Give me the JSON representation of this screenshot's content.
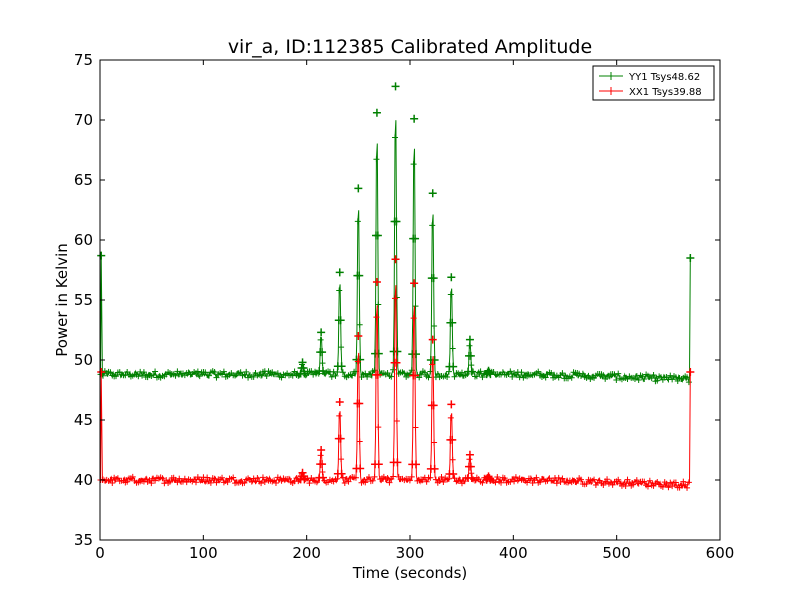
{
  "chart_data": {
    "type": "line",
    "title": "vir_a, ID:112385 Calibrated Amplitude",
    "xlabel": "Time (seconds)",
    "ylabel": "Power in Kelvin",
    "xlim": [
      0,
      600
    ],
    "ylim": [
      35,
      75
    ],
    "xticks": [
      "0",
      "100",
      "200",
      "300",
      "400",
      "500",
      "600"
    ],
    "yticks": [
      "35",
      "40",
      "45",
      "50",
      "55",
      "60",
      "65",
      "70",
      "75"
    ],
    "grid": false,
    "legend_position": "top-right",
    "marker": "plus",
    "series": [
      {
        "name": "YY1 Tsys48.62",
        "color": "#008000",
        "baseline": 48.8,
        "start_level": 58.7,
        "end_level": 58.5,
        "peaks": [
          {
            "x": 196,
            "y": 49.8
          },
          {
            "x": 214,
            "y": 52.3
          },
          {
            "x": 232,
            "y": 57.3
          },
          {
            "x": 250,
            "y": 64.3
          },
          {
            "x": 268,
            "y": 70.6
          },
          {
            "x": 286,
            "y": 72.8
          },
          {
            "x": 304,
            "y": 70.1
          },
          {
            "x": 322,
            "y": 63.9
          },
          {
            "x": 340,
            "y": 56.9
          },
          {
            "x": 358,
            "y": 51.7
          },
          {
            "x": 376,
            "y": 49.1
          }
        ]
      },
      {
        "name": "XX1 Tsys39.88",
        "color": "#ff0000",
        "baseline": 40.0,
        "start_level": 49.0,
        "end_level": 49.0,
        "peaks": [
          {
            "x": 196,
            "y": 40.6
          },
          {
            "x": 214,
            "y": 42.5
          },
          {
            "x": 232,
            "y": 46.5
          },
          {
            "x": 250,
            "y": 52.0
          },
          {
            "x": 268,
            "y": 56.5
          },
          {
            "x": 286,
            "y": 58.4
          },
          {
            "x": 304,
            "y": 56.4
          },
          {
            "x": 322,
            "y": 51.7
          },
          {
            "x": 340,
            "y": 46.3
          },
          {
            "x": 358,
            "y": 42.1
          },
          {
            "x": 376,
            "y": 40.3
          }
        ]
      }
    ]
  }
}
